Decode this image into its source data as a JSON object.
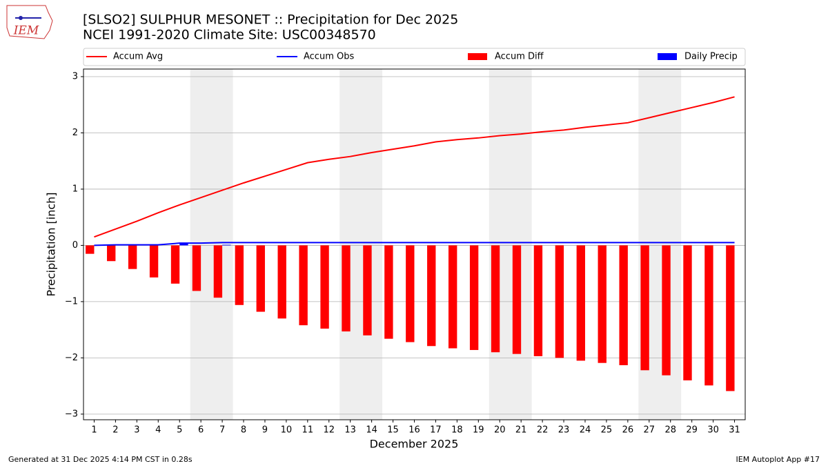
{
  "logo_text": "IEM",
  "footer_left": "Generated at 31 Dec 2025 4:14 PM CST in 0.28s",
  "footer_right": "IEM Autoplot App #17",
  "chart_data": {
    "type": "combo",
    "title": "[SLSO2] SULPHUR MESONET :: Precipitation for Dec 2025",
    "subtitle": "NCEI 1991-2020 Climate Site: USC00348570",
    "x_label": "December 2025",
    "y_label": "Precipitation [inch]",
    "x": [
      1,
      2,
      3,
      4,
      5,
      6,
      7,
      8,
      9,
      10,
      11,
      12,
      13,
      14,
      15,
      16,
      17,
      18,
      19,
      20,
      21,
      22,
      23,
      24,
      25,
      26,
      27,
      28,
      29,
      30,
      31
    ],
    "xlim": [
      0.5,
      31.5
    ],
    "xticks": [
      1,
      2,
      3,
      4,
      5,
      6,
      7,
      8,
      9,
      10,
      11,
      12,
      13,
      14,
      15,
      16,
      17,
      18,
      19,
      20,
      21,
      22,
      23,
      24,
      25,
      26,
      27,
      28,
      29,
      30,
      31
    ],
    "ylim": [
      -3.1,
      3.135
    ],
    "yticks": [
      {
        "value": -3,
        "label": "−3"
      },
      {
        "value": -2,
        "label": "−2"
      },
      {
        "value": -1,
        "label": "−1"
      },
      0,
      1,
      2,
      3
    ],
    "grid": true,
    "weekend_spans": [
      [
        5.5,
        7.5
      ],
      [
        12.5,
        14.5
      ],
      [
        19.5,
        21.5
      ],
      [
        26.5,
        28.5
      ]
    ],
    "weekend_color": "#eeeeee",
    "series": [
      {
        "name": "Accum Avg",
        "kind": "line",
        "color": "#ff0000",
        "values": [
          0.15,
          0.29,
          0.43,
          0.58,
          0.72,
          0.85,
          0.98,
          1.11,
          1.23,
          1.35,
          1.47,
          1.53,
          1.58,
          1.65,
          1.71,
          1.77,
          1.84,
          1.88,
          1.91,
          1.95,
          1.98,
          2.02,
          2.05,
          2.1,
          2.14,
          2.18,
          2.27,
          2.36,
          2.45,
          2.54,
          2.64
        ]
      },
      {
        "name": "Accum Obs",
        "kind": "line",
        "color": "#0000ff",
        "values": [
          0,
          0.01,
          0.01,
          0.01,
          0.04,
          0.04,
          0.05,
          0.05,
          0.05,
          0.05,
          0.05,
          0.05,
          0.05,
          0.05,
          0.05,
          0.05,
          0.05,
          0.05,
          0.05,
          0.05,
          0.05,
          0.05,
          0.05,
          0.05,
          0.05,
          0.05,
          0.05,
          0.05,
          0.05,
          0.05,
          0.05
        ]
      },
      {
        "name": "Accum Diff",
        "kind": "bar",
        "color": "#ff0000",
        "values": [
          -0.15,
          -0.28,
          -0.42,
          -0.57,
          -0.68,
          -0.81,
          -0.93,
          -1.06,
          -1.18,
          -1.3,
          -1.42,
          -1.48,
          -1.53,
          -1.6,
          -1.66,
          -1.72,
          -1.79,
          -1.83,
          -1.86,
          -1.9,
          -1.93,
          -1.97,
          -2.0,
          -2.05,
          -2.09,
          -2.13,
          -2.22,
          -2.31,
          -2.4,
          -2.49,
          -2.59
        ]
      },
      {
        "name": "Daily Precip",
        "kind": "bar",
        "color": "#0000ff",
        "values": [
          0,
          0.01,
          0,
          0,
          0.03,
          0,
          0.01,
          0,
          0,
          0,
          0,
          0,
          0,
          0,
          0,
          0,
          0,
          0,
          0,
          0,
          0,
          0,
          0,
          0,
          0,
          0,
          0,
          0,
          0,
          0,
          0
        ]
      }
    ]
  }
}
